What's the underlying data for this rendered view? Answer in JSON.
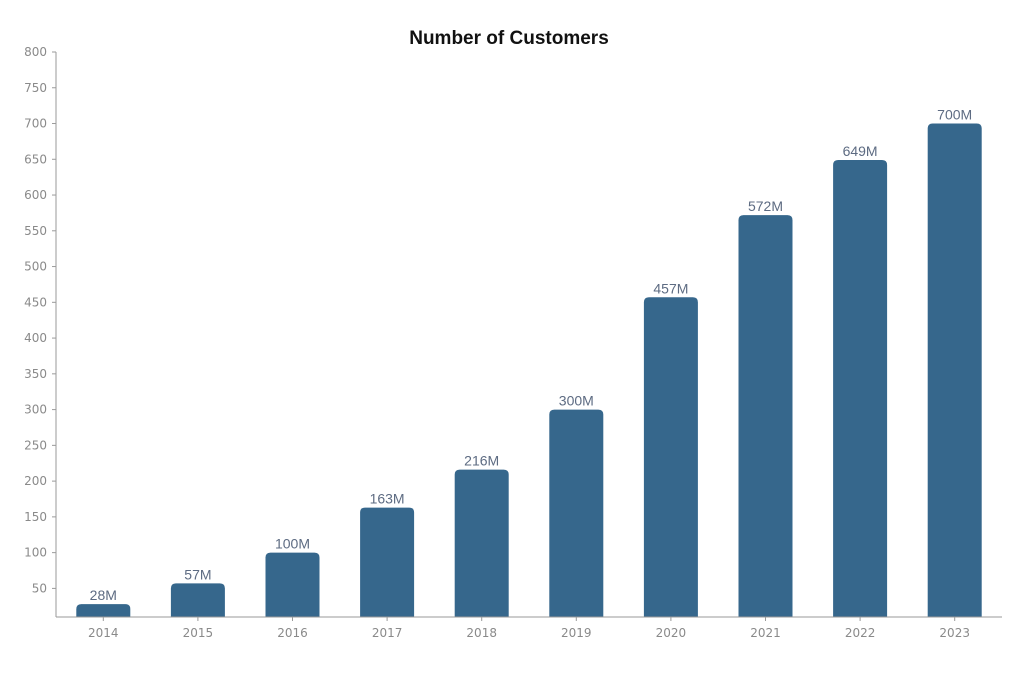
{
  "chart_data": {
    "type": "bar",
    "title": "Number of Customers",
    "xlabel": "",
    "ylabel": "",
    "categories": [
      "2014",
      "2015",
      "2016",
      "2017",
      "2018",
      "2019",
      "2020",
      "2021",
      "2022",
      "2023"
    ],
    "values": [
      28,
      57,
      100,
      163,
      216,
      300,
      457,
      572,
      649,
      700
    ],
    "data_labels": [
      "28M",
      "57M",
      "100M",
      "163M",
      "216M",
      "300M",
      "457M",
      "572M",
      "649M",
      "700M"
    ],
    "y_ticks": [
      "50",
      "100",
      "150",
      "200",
      "250",
      "300",
      "350",
      "400",
      "450",
      "500",
      "550",
      "600",
      "650",
      "700",
      "750",
      "800"
    ],
    "ylim": [
      10,
      800
    ],
    "grid": false,
    "legend": "none",
    "bar_color": "#36678c"
  }
}
